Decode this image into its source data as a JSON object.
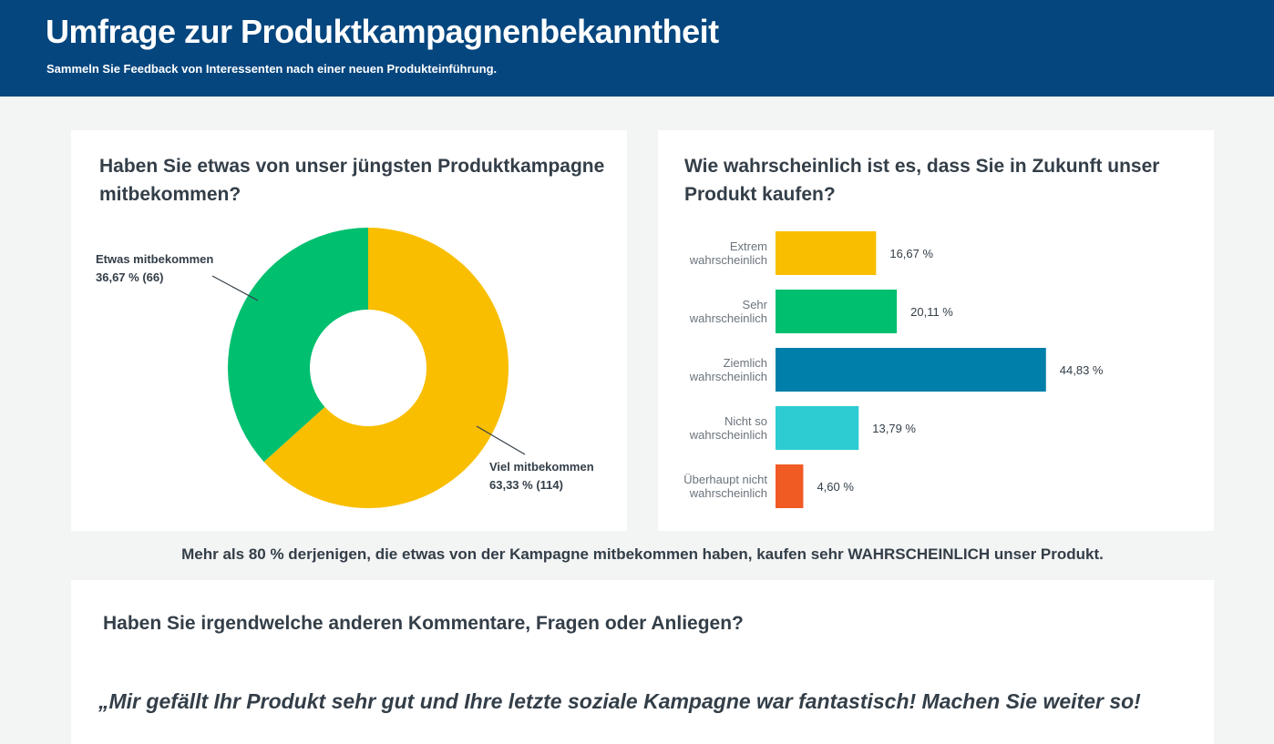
{
  "header": {
    "title": "Umfrage zur Produktkampagnenbekanntheit",
    "subtitle": "Sammeln Sie Feedback von Interessenten nach einer neuen Produkteinführung."
  },
  "colors": {
    "header_bg": "#05467e",
    "yellow": "#f9be00",
    "green": "#00bf6f",
    "blue": "#007faa",
    "teal": "#2dccd3",
    "orange": "#f05b24"
  },
  "chart_data": [
    {
      "type": "pie",
      "title": "Haben Sie etwas von unser jüngsten Produktkampagne mitbekommen?",
      "slices": [
        {
          "label": "Viel mitbekommen",
          "value": 63.33,
          "count": 114,
          "value_text": "63,33 % (114)",
          "color": "#f9be00"
        },
        {
          "label": "Etwas mitbekommen",
          "value": 36.67,
          "count": 66,
          "value_text": "36,67 % (66)",
          "color": "#00bf6f"
        }
      ]
    },
    {
      "type": "bar",
      "orientation": "horizontal",
      "title": "Wie wahrscheinlich ist es, dass Sie in Zukunft unser Produkt kaufen?",
      "categories": [
        [
          "Extrem",
          "wahrscheinlich"
        ],
        [
          "Sehr",
          "wahrscheinlich"
        ],
        [
          "Ziemlich",
          "wahrscheinlich"
        ],
        [
          "Nicht so",
          "wahrscheinlich"
        ],
        [
          "Überhaupt nicht",
          "wahrscheinlich"
        ]
      ],
      "values": [
        16.67,
        20.11,
        44.83,
        13.79,
        4.6
      ],
      "value_labels": [
        "16,67 %",
        "20,11 %",
        "44,83 %",
        "13,79 %",
        "4,60 %"
      ],
      "colors": [
        "#f9be00",
        "#00bf6f",
        "#007faa",
        "#2dccd3",
        "#f05b24"
      ],
      "xlim": [
        0,
        50
      ]
    }
  ],
  "insight": "Mehr als 80 % derjenigen, die etwas von der Kampagne mitbekommen haben, kaufen sehr WAHRSCHEINLICH unser Produkt.",
  "comments": {
    "question": "Haben Sie irgendwelche anderen Kommentare, Fragen oder Anliegen?",
    "quote": "„Mir gefällt Ihr Produkt sehr gut und Ihre letzte soziale Kampagne war fantastisch! Machen Sie weiter so!"
  }
}
